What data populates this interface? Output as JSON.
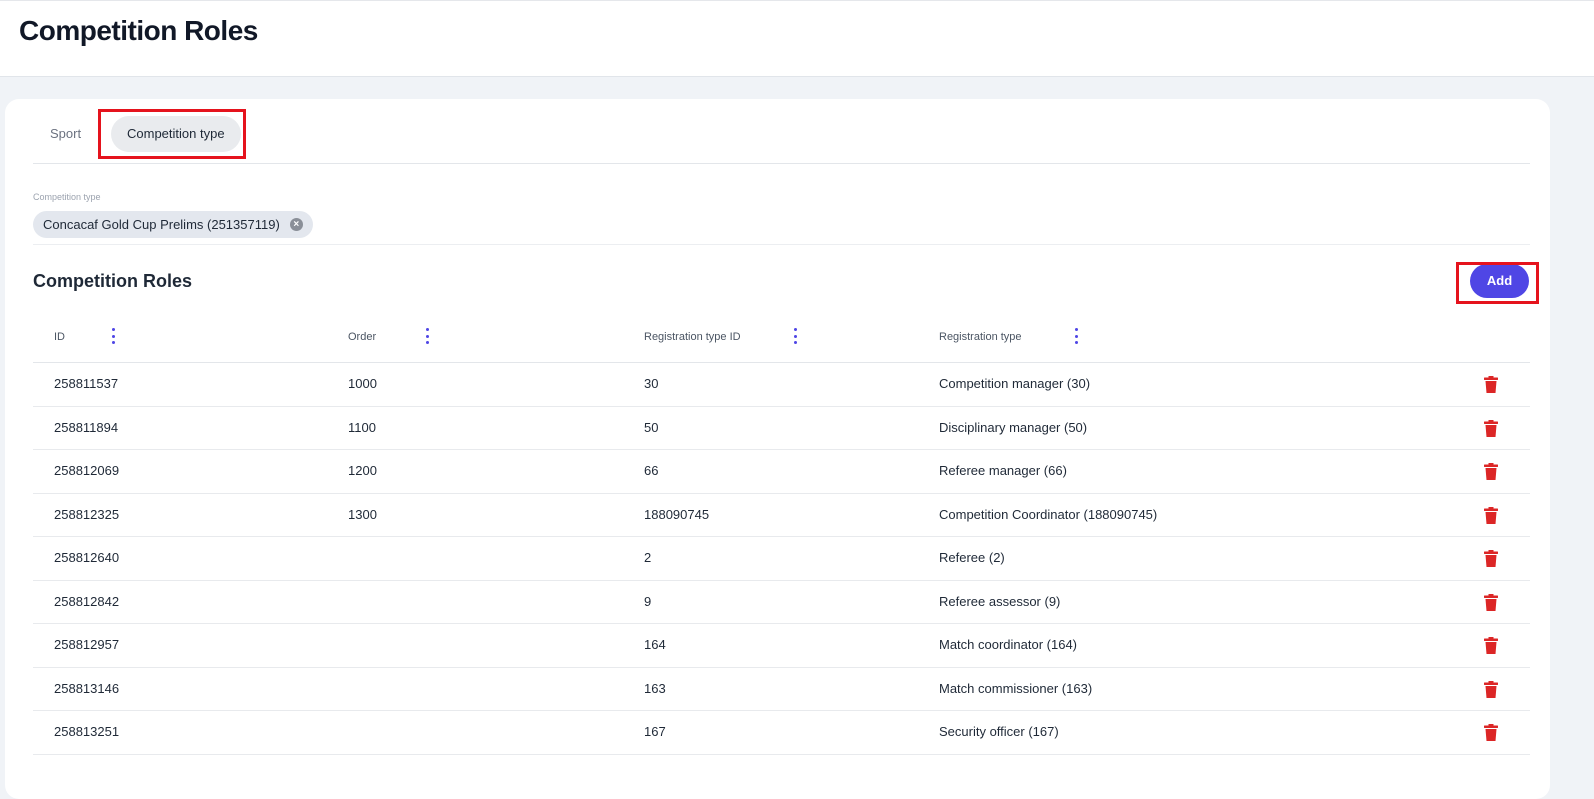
{
  "header": {
    "title": "Competition Roles"
  },
  "tabs": [
    {
      "label": "Sport",
      "active": false
    },
    {
      "label": "Competition type",
      "active": true
    }
  ],
  "filter": {
    "label": "Competition type",
    "chip": "Concacaf Gold Cup Prelims (251357119)",
    "remove_icon": "close-circle-icon"
  },
  "section": {
    "title": "Competition Roles",
    "add_label": "Add"
  },
  "colors": {
    "accent": "#4f46e5",
    "delete": "#dc2626",
    "highlight": "#e5131d"
  },
  "table": {
    "columns": [
      "ID",
      "Order",
      "Registration type ID",
      "Registration type"
    ],
    "rows": [
      [
        "258811537",
        "1000",
        "30",
        "Competition manager (30)"
      ],
      [
        "258811894",
        "1100",
        "50",
        "Disciplinary manager (50)"
      ],
      [
        "258812069",
        "1200",
        "66",
        "Referee manager (66)"
      ],
      [
        "258812325",
        "1300",
        "188090745",
        "Competition Coordinator (188090745)"
      ],
      [
        "258812640",
        "",
        "2",
        "Referee (2)"
      ],
      [
        "258812842",
        "",
        "9",
        "Referee assessor (9)"
      ],
      [
        "258812957",
        "",
        "164",
        "Match coordinator (164)"
      ],
      [
        "258813146",
        "",
        "163",
        "Match commissioner (163)"
      ],
      [
        "258813251",
        "",
        "167",
        "Security officer (167)"
      ]
    ]
  }
}
